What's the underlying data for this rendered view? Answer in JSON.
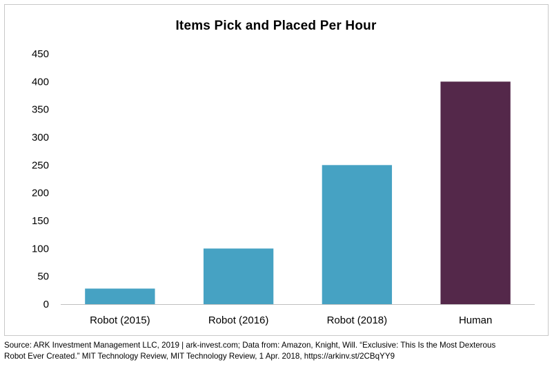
{
  "chart_data": {
    "type": "bar",
    "title": "Items Pick and Placed Per Hour",
    "categories": [
      "Robot (2015)",
      "Robot (2016)",
      "Robot (2018)",
      "Human"
    ],
    "values": [
      28,
      100,
      250,
      400
    ],
    "colors": [
      "#46a2c3",
      "#46a2c3",
      "#46a2c3",
      "#54284a"
    ],
    "yticks": [
      0,
      50,
      100,
      150,
      200,
      250,
      300,
      350,
      400,
      450
    ],
    "ylim": [
      0,
      450
    ],
    "xlabel": "",
    "ylabel": "",
    "grid": false
  },
  "source": {
    "line1": "Source: ARK Investment Management LLC, 2019 | ark-invest.com;  Data from: Amazon, Knight, Will. “Exclusive: This Is the Most Dexterous",
    "line2": "Robot Ever Created.” MIT Technology Review, MIT Technology Review, 1 Apr. 2018, https://arkinv.st/2CBqYY9"
  }
}
